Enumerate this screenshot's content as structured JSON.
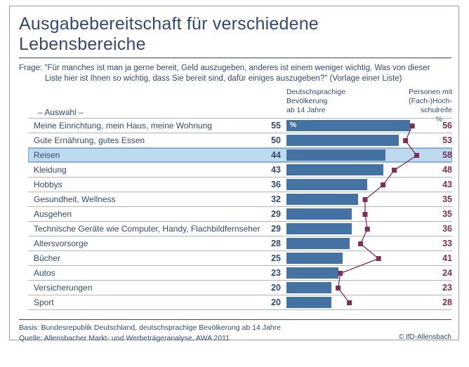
{
  "title": "Ausgabebereitschaft für verschiedene Lebensbereiche",
  "question": "Frage: \"Für manches ist man ja gerne bereit, Geld auszugeben, anderes ist einem weniger wichtig. Was von dieser Liste hier ist Ihnen so wichtig, dass Sie bereit sind, dafür einiges auszugeben?\" (Vorlage einer Liste)",
  "selection_label": "– Auswahl –",
  "columns": {
    "population_header": "Deutschsprachige\nBevölkerung\nab 14 Jahre",
    "graduates_header": "Personen mit\n(Fach-)Hoch-\nschulreife",
    "percent_label": "%"
  },
  "chart_data": {
    "type": "bar",
    "orientation": "horizontal",
    "unit": "%",
    "categories": [
      "Meine Einrichtung, mein Haus, meine Wohnung",
      "Gute Ernährung, gutes Essen",
      "Reisen",
      "Kleidung",
      "Hobbys",
      "Gesundheit, Wellness",
      "Ausgehen",
      "Technische Geräte wie Computer, Handy, Flachbildfernseher",
      "Altersvorsorge",
      "Bücher",
      "Autos",
      "Versicherungen",
      "Sport"
    ],
    "series": [
      {
        "name": "Deutschsprachige Bevölkerung ab 14 Jahre",
        "style": "bar",
        "values": [
          55,
          50,
          44,
          43,
          36,
          32,
          29,
          29,
          28,
          25,
          23,
          20,
          20
        ]
      },
      {
        "name": "Personen mit (Fach-)Hochschulreife",
        "style": "line-markers",
        "values": [
          56,
          53,
          58,
          48,
          43,
          35,
          35,
          36,
          33,
          41,
          24,
          23,
          28
        ]
      }
    ],
    "highlight_index": 2,
    "highlighted_category": "Reisen",
    "xlim": [
      0,
      62
    ],
    "grid": "row-separators",
    "legend_position": "column-headers"
  },
  "footer": {
    "basis": "Basis: Bundesrepublik Deutschland, deutschsprachige Bevölkerung ab 14 Jahre",
    "source": "Quelle: Allensbacher Markt- und Werbeträgeranalyse, AWA 2011",
    "copyright": "© IfD-Allensbach"
  },
  "colors": {
    "text_navy": "#324a70",
    "bar_blue": "#4372a3",
    "accent_maroon": "#802f54",
    "highlight_bg": "#bfdaee",
    "highlight_border": "#79a7d0",
    "separator": "#a8b8c9",
    "frame_border": "#8fa0b2"
  }
}
